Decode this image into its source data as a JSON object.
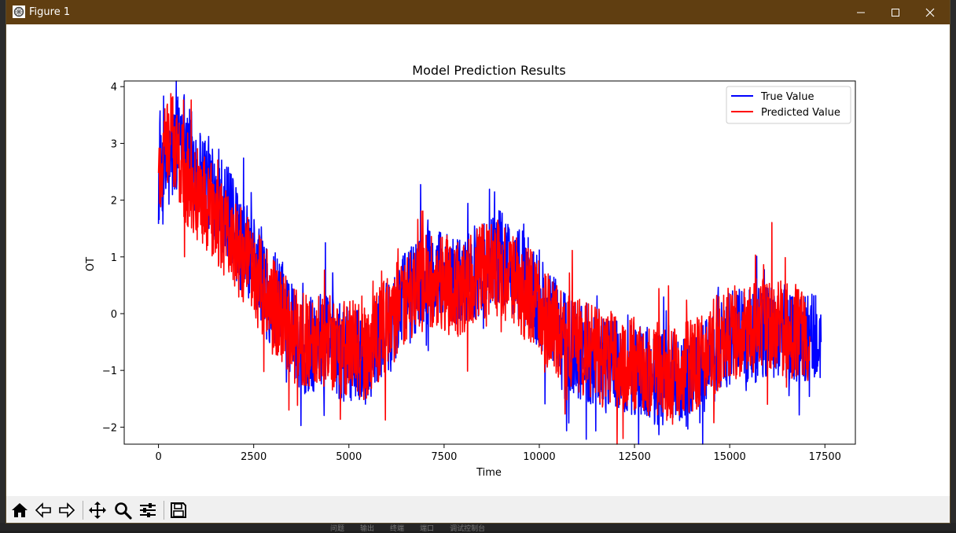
{
  "window": {
    "title": "Figure 1",
    "titlebar_color": "#603e11",
    "icons": {
      "app": "matplotlib-figure-icon",
      "minimize": "minimize-icon",
      "maximize": "maximize-icon",
      "close": "close-icon"
    }
  },
  "toolbar": {
    "buttons": [
      {
        "name": "home-button",
        "icon": "home-icon",
        "tooltip": "Reset original view"
      },
      {
        "name": "back-button",
        "icon": "back-arrow-icon",
        "tooltip": "Back to previous view"
      },
      {
        "name": "forward-button",
        "icon": "forward-arrow-icon",
        "tooltip": "Forward to next view"
      },
      {
        "name": "pan-button",
        "icon": "move-cross-icon",
        "tooltip": "Pan axes"
      },
      {
        "name": "zoom-button",
        "icon": "magnifier-icon",
        "tooltip": "Zoom to rectangle"
      },
      {
        "name": "configure-subplots-button",
        "icon": "sliders-icon",
        "tooltip": "Configure subplots"
      },
      {
        "name": "save-button",
        "icon": "floppy-disk-icon",
        "tooltip": "Save the figure"
      }
    ]
  },
  "chart_data": {
    "type": "line",
    "title": "Model Prediction Results",
    "xlabel": "Time",
    "ylabel": "OT",
    "xlim": [
      -900,
      18300
    ],
    "ylim": [
      -2.3,
      4.1
    ],
    "xticks": [
      0,
      2500,
      5000,
      7500,
      10000,
      12500,
      15000,
      17500
    ],
    "xtick_labels": [
      "0",
      "2500",
      "5000",
      "7500",
      "10000",
      "12500",
      "15000",
      "17500"
    ],
    "yticks": [
      -2,
      -1,
      0,
      1,
      2,
      3,
      4
    ],
    "ytick_labels": [
      "−2",
      "−1",
      "0",
      "1",
      "2",
      "3",
      "4"
    ],
    "grid": false,
    "legend_position": "upper right",
    "series": [
      {
        "name": "True Value",
        "color": "#0000ff",
        "x": [
          0,
          300,
          600,
          900,
          1200,
          1500,
          1800,
          2100,
          2400,
          2700,
          3000,
          3300,
          3600,
          3900,
          4200,
          4500,
          4800,
          5100,
          5400,
          5700,
          6000,
          6300,
          6600,
          6900,
          7200,
          7500,
          7800,
          8100,
          8400,
          8700,
          9000,
          9300,
          9600,
          9900,
          10200,
          10500,
          10800,
          11100,
          11400,
          11700,
          12000,
          12300,
          12600,
          12900,
          13200,
          13500,
          13800,
          14100,
          14400,
          14700,
          15000,
          15300,
          15600,
          15900,
          16200,
          16500,
          16800,
          17100,
          17400
        ],
        "values": [
          2.3,
          2.6,
          3.3,
          2.7,
          2.4,
          2.1,
          1.8,
          1.3,
          1.0,
          0.7,
          0.2,
          0.0,
          -0.4,
          -0.6,
          -0.5,
          -0.5,
          -0.7,
          -0.7,
          -0.8,
          -0.5,
          -0.3,
          0.1,
          0.4,
          0.6,
          0.7,
          0.6,
          0.5,
          0.6,
          0.8,
          0.9,
          1.0,
          0.8,
          0.6,
          0.3,
          0.0,
          -0.3,
          -0.5,
          -0.7,
          -0.8,
          -0.8,
          -0.9,
          -1.0,
          -1.0,
          -1.1,
          -1.1,
          -1.2,
          -1.2,
          -1.0,
          -0.9,
          -0.6,
          -0.4,
          -0.4,
          -0.4,
          -0.3,
          -0.3,
          -0.3,
          -0.4,
          -0.5,
          -0.5
        ]
      },
      {
        "name": "Predicted Value",
        "color": "#ff0000",
        "x": [
          0,
          300,
          600,
          900,
          1200,
          1500,
          1800,
          2100,
          2400,
          2700,
          3000,
          3300,
          3600,
          3900,
          4200,
          4500,
          4800,
          5100,
          5400,
          5700,
          6000,
          6300,
          6600,
          6900,
          7200,
          7500,
          7800,
          8100,
          8400,
          8700,
          9000,
          9300,
          9600,
          9900,
          10200,
          10500,
          10800,
          11100,
          11400,
          11700,
          12000,
          12300,
          12600,
          12900,
          13200,
          13500,
          13800,
          14100,
          14400,
          14700,
          15000,
          15300,
          15600,
          15900,
          16200,
          16500,
          16800,
          17100
        ],
        "values": [
          2.4,
          3.2,
          2.6,
          2.2,
          2.0,
          1.7,
          1.4,
          1.1,
          0.8,
          0.5,
          0.1,
          -0.1,
          -0.4,
          -0.5,
          -0.5,
          -0.5,
          -0.6,
          -0.6,
          -0.7,
          -0.4,
          -0.2,
          0.1,
          0.3,
          0.5,
          0.6,
          0.5,
          0.4,
          0.5,
          0.7,
          0.8,
          0.8,
          0.6,
          0.4,
          0.2,
          -0.1,
          -0.3,
          -0.5,
          -0.6,
          -0.7,
          -0.8,
          -0.8,
          -0.9,
          -0.9,
          -1.0,
          -1.0,
          -1.1,
          -1.0,
          -0.9,
          -0.7,
          -0.5,
          -0.3,
          -0.3,
          -0.3,
          -0.2,
          -0.2,
          -0.3,
          -0.3,
          -0.4
        ]
      }
    ]
  },
  "bottom_status": [
    "问题",
    "输出",
    "终端",
    "端口",
    "调试控制台"
  ]
}
